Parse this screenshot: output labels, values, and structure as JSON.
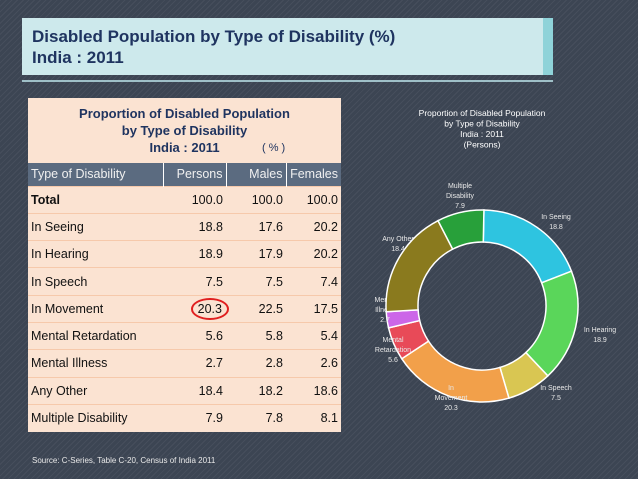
{
  "title": {
    "line1": "Disabled Population by Type of Disability (%)",
    "line2": "India : 2011"
  },
  "table": {
    "heading1": "Proportion of Disabled Population",
    "heading2": "by Type of Disability",
    "heading3": "India : 2011",
    "unit": "( % )",
    "columns": [
      "Type of Disability",
      "Persons",
      "Males",
      "Females"
    ],
    "rows": [
      [
        "Total",
        "100.0",
        "100.0",
        "100.0"
      ],
      [
        "In Seeing",
        "18.8",
        "17.6",
        "20.2"
      ],
      [
        "In Hearing",
        "18.9",
        "17.9",
        "20.2"
      ],
      [
        "In Speech",
        "7.5",
        "7.5",
        "7.4"
      ],
      [
        "In Movement",
        "20.3",
        "22.5",
        "17.5"
      ],
      [
        "Mental Retardation",
        "5.6",
        "5.8",
        "5.4"
      ],
      [
        "Mental Illness",
        "2.7",
        "2.8",
        "2.6"
      ],
      [
        "Any Other",
        "18.4",
        "18.2",
        "18.6"
      ],
      [
        "Multiple Disability",
        "7.9",
        "7.8",
        "8.1"
      ]
    ],
    "highlight": {
      "row": 4,
      "col": 1
    }
  },
  "source": "Source: C-Series, Table C-20, Census of India 2011",
  "chart_data": {
    "type": "pie",
    "donut": true,
    "title": [
      "Proportion of Disabled Population",
      "by Type of Disability",
      "India : 2011",
      "(Persons)"
    ],
    "slices": [
      {
        "label": [
          "In Seeing"
        ],
        "value": 18.8,
        "value_text": "18.8",
        "color": "#2ec4e0"
      },
      {
        "label": [
          "In Hearing"
        ],
        "value": 18.9,
        "value_text": "18.9",
        "color": "#5ad65a"
      },
      {
        "label": [
          "In Speech"
        ],
        "value": 7.5,
        "value_text": "7.5",
        "color": "#d9c652"
      },
      {
        "label": [
          "In",
          "Movement"
        ],
        "value": 20.3,
        "value_text": "20.3",
        "color": "#f2a04a"
      },
      {
        "label": [
          "Mental",
          "Retardation"
        ],
        "value": 5.6,
        "value_text": "5.6",
        "color": "#e84a58"
      },
      {
        "label": [
          "Mental",
          "Illness"
        ],
        "value": 2.7,
        "value_text": "2.7",
        "color": "#cc66e8"
      },
      {
        "label": [
          "Any Other"
        ],
        "value": 18.4,
        "value_text": "18.4",
        "color": "#8a7a1e"
      },
      {
        "label": [
          "Multiple",
          "Disability"
        ],
        "value": 7.9,
        "value_text": "7.9",
        "color": "#28a03a"
      }
    ]
  }
}
